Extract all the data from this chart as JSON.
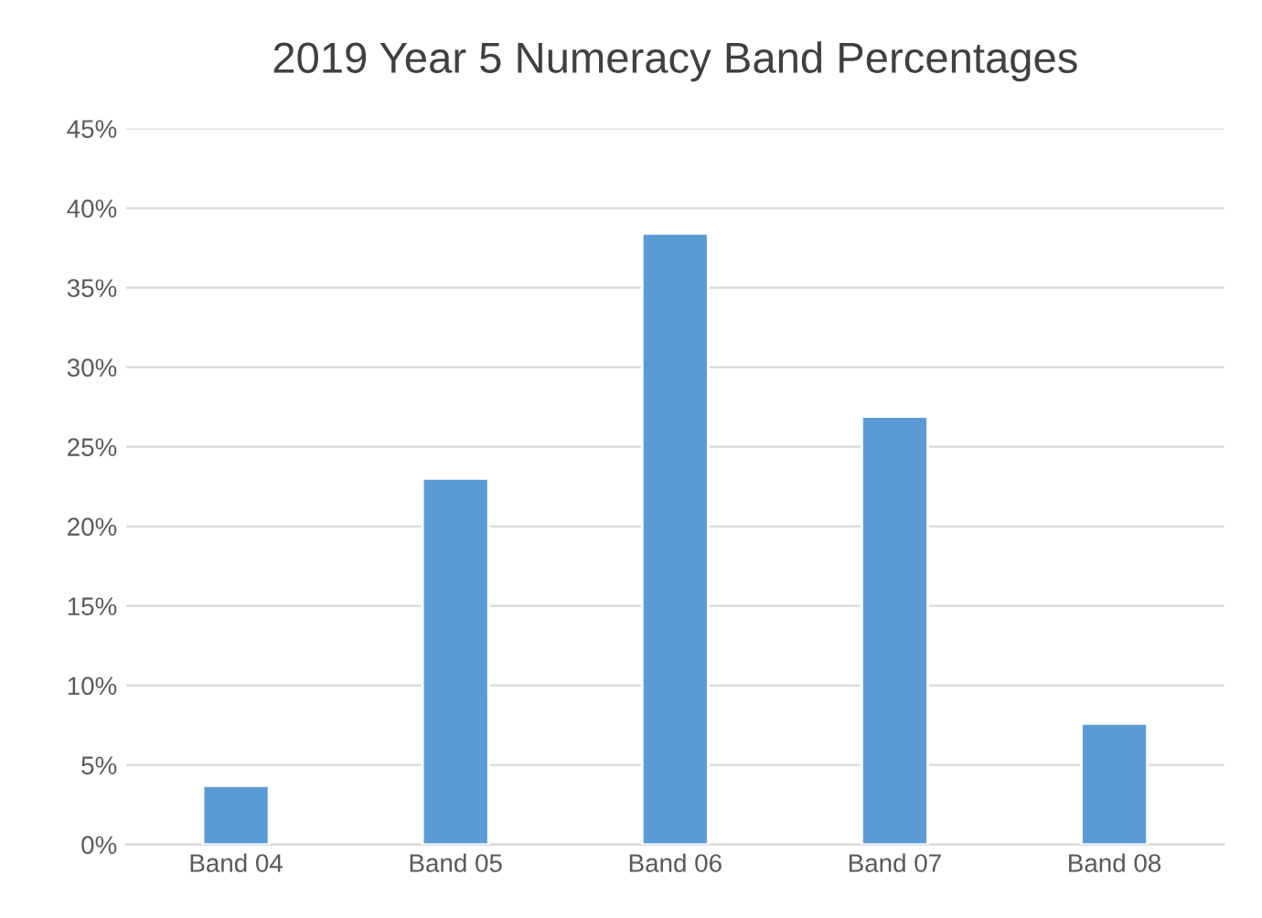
{
  "chart_data": {
    "type": "bar",
    "title": "2019 Year 5 Numeracy Band Percentages",
    "categories": [
      "Band 04",
      "Band 05",
      "Band 06",
      "Band 07",
      "Band 08"
    ],
    "values": [
      3.7,
      23.0,
      38.4,
      26.9,
      7.6
    ],
    "color": "#5b9bd5",
    "ylim": [
      0,
      45
    ],
    "yticks": [
      {
        "value": 0,
        "label": "0%"
      },
      {
        "value": 5,
        "label": "5%"
      },
      {
        "value": 10,
        "label": "10%"
      },
      {
        "value": 15,
        "label": "15%"
      },
      {
        "value": 20,
        "label": "20%"
      },
      {
        "value": 25,
        "label": "25%"
      },
      {
        "value": 30,
        "label": "30%"
      },
      {
        "value": 35,
        "label": "35%"
      },
      {
        "value": 40,
        "label": "40%"
      },
      {
        "value": 45,
        "label": "45%"
      }
    ],
    "grid": "y",
    "legend": false
  }
}
